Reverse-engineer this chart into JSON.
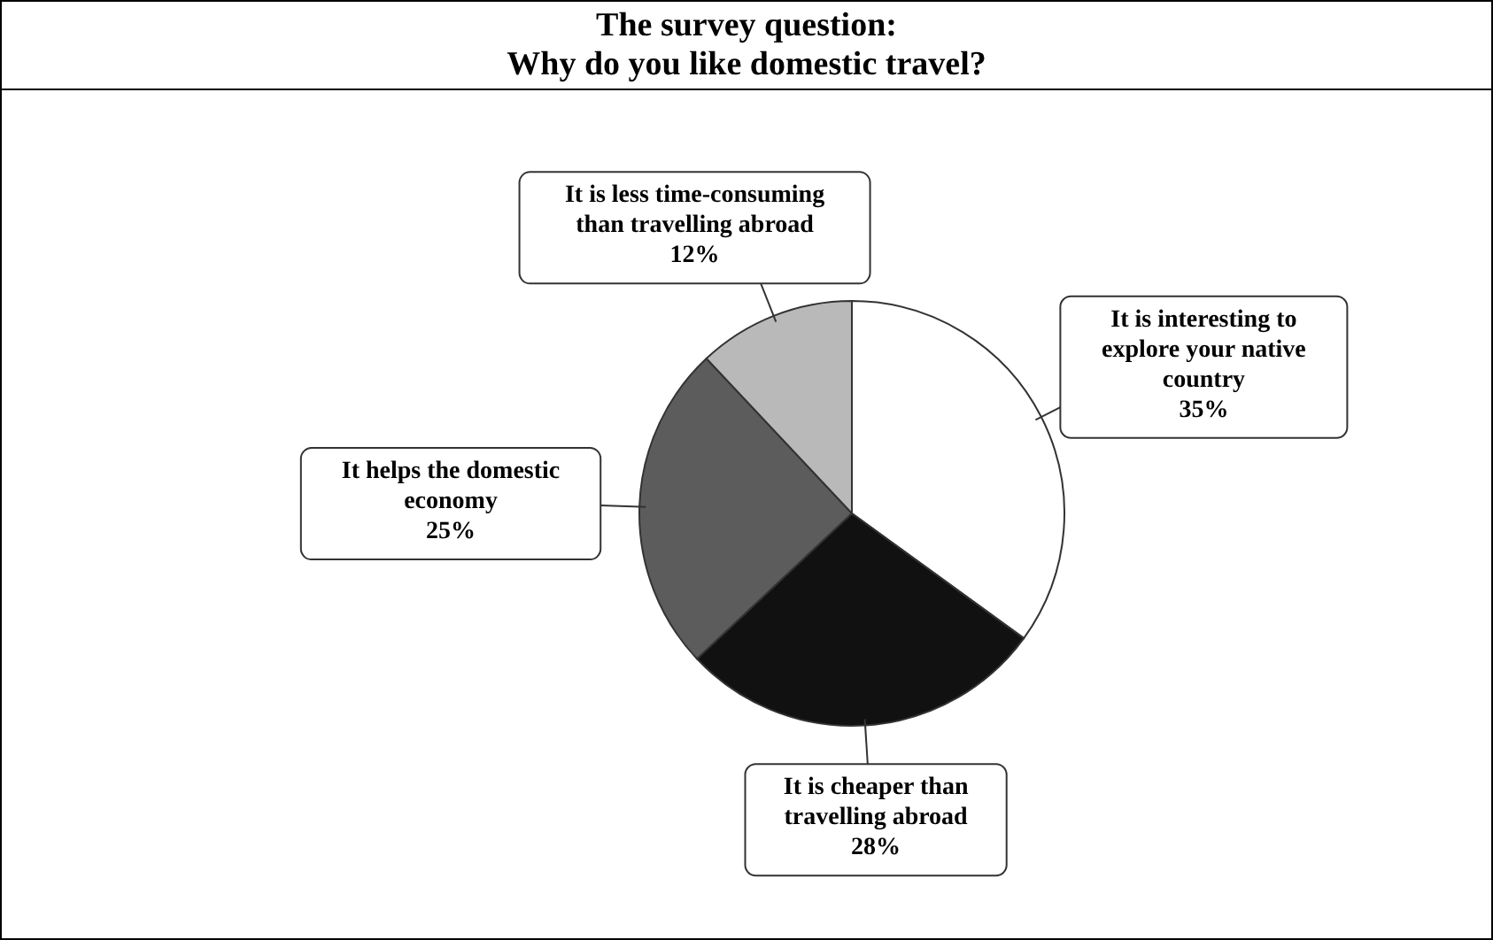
{
  "chart_data": {
    "type": "pie",
    "title": "The survey question:",
    "subtitle": "Why do you like domestic travel?",
    "categories": [
      "It is interesting to explore your native country",
      "It is cheaper than travelling abroad",
      "It helps the domestic economy",
      "It is less time-consuming than travelling abroad"
    ],
    "values": [
      35,
      28,
      25,
      12
    ],
    "value_labels": [
      "35%",
      "28%",
      "25%",
      "12%"
    ],
    "colors": [
      "#ffffff",
      "#111111",
      "#5c5c5c",
      "#b9b9b9"
    ]
  }
}
